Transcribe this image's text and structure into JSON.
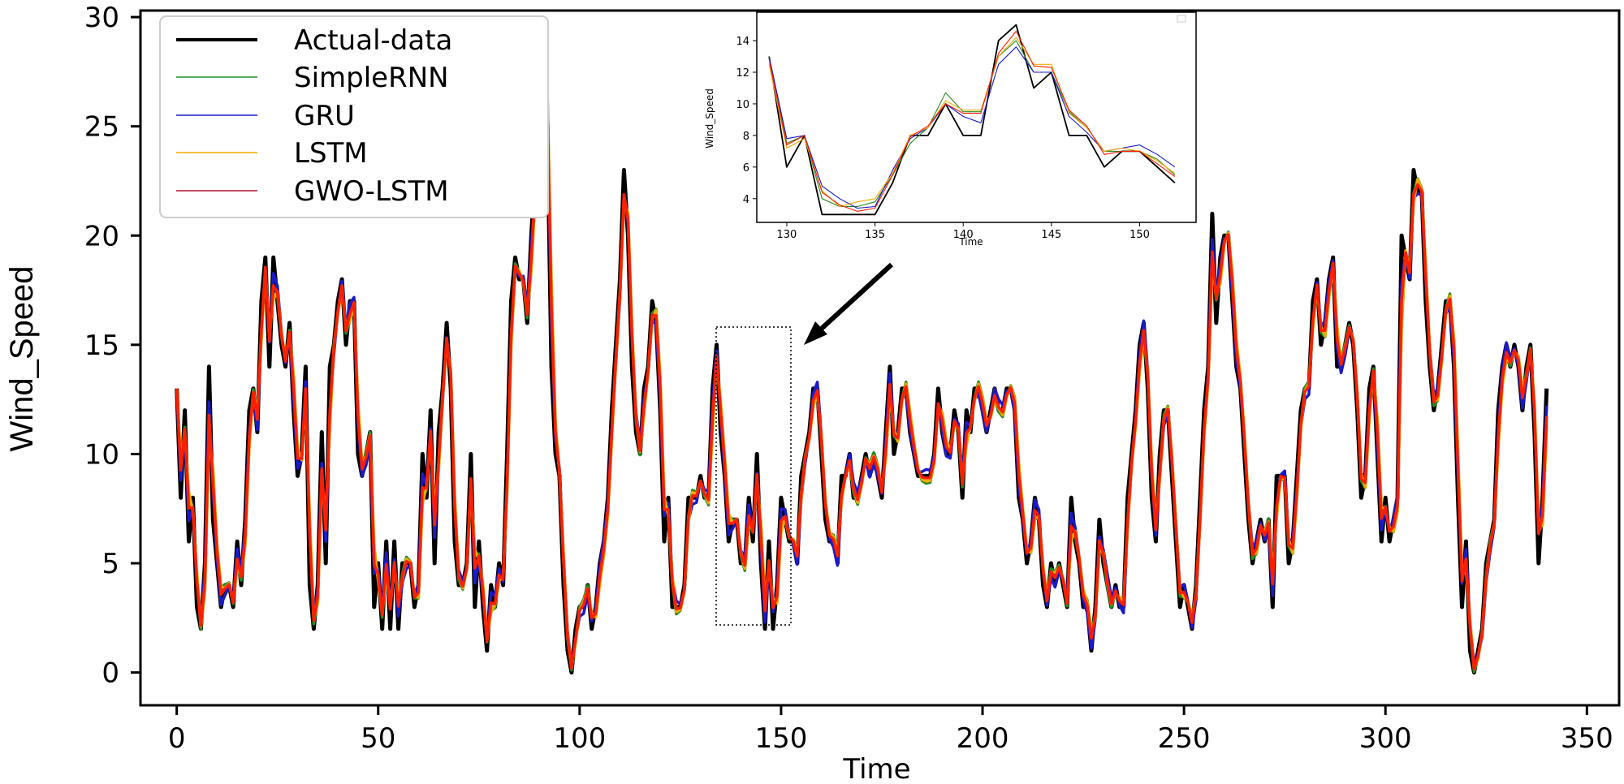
{
  "colors": {
    "actual": "#000000",
    "simplernn": "#228b22",
    "gru": "#1a1ac8",
    "lstm": "#f2a900",
    "gwo": "#b0102a",
    "red_overlay": "#ff1e00"
  },
  "chart_data": [
    {
      "type": "line",
      "title": "",
      "xlabel": "Time",
      "ylabel": "Wind_Speed",
      "xlim": [
        -9,
        358
      ],
      "ylim": [
        -1.5,
        30.3
      ],
      "xticks": [
        0,
        50,
        100,
        150,
        200,
        250,
        300,
        350
      ],
      "yticks": [
        0,
        5,
        10,
        15,
        20,
        25,
        30
      ],
      "legend": {
        "position": "top-left",
        "entries": [
          "Actual-data",
          "SimpleRNN",
          "GRU",
          "LSTM",
          "GWO-LSTM"
        ]
      },
      "annotation": "dotted box around x=130-150 with arrow pointing to inset",
      "series": [
        {
          "name": "Actual-data",
          "x_start": 0,
          "values": [
            13,
            8,
            12,
            6,
            8,
            3,
            2,
            5,
            14,
            7,
            5,
            3,
            4,
            4,
            3,
            6,
            4,
            7,
            12,
            13,
            11,
            17,
            19,
            14,
            19,
            17,
            15,
            14,
            16,
            12,
            9,
            10,
            14,
            4,
            2,
            4,
            11,
            5,
            14,
            15,
            17,
            18,
            15,
            17,
            17,
            10,
            9,
            10,
            11,
            3,
            5,
            2,
            6,
            2,
            6,
            2,
            5,
            5,
            5,
            3,
            4,
            10,
            8,
            12,
            5,
            11,
            13,
            16,
            13,
            6,
            4,
            4,
            5,
            10,
            3,
            6,
            3,
            1,
            4,
            3,
            5,
            4,
            10,
            17,
            19,
            18,
            18,
            16,
            20,
            23,
            22,
            29,
            25,
            14,
            10,
            9,
            4,
            1,
            0,
            2,
            3,
            3,
            4,
            2,
            3,
            5,
            6,
            8,
            12,
            15,
            18,
            23,
            20,
            14,
            11,
            10,
            13,
            14,
            17,
            16,
            12,
            6,
            8,
            3,
            3,
            3,
            4,
            8,
            8,
            8,
            9,
            8,
            8,
            13,
            15,
            11,
            9,
            6,
            7,
            7,
            5,
            5,
            8,
            6,
            10,
            5,
            2,
            6,
            2,
            4,
            8,
            7,
            6,
            6,
            5,
            9,
            10,
            11,
            13,
            13,
            10,
            7,
            6,
            6,
            5,
            9,
            9,
            10,
            8,
            8,
            9,
            10,
            9,
            10,
            9,
            8,
            11,
            14,
            10,
            11,
            13,
            13,
            11,
            10,
            9,
            9,
            9,
            9,
            10,
            13,
            11,
            10,
            10,
            12,
            11,
            8,
            12,
            11,
            13,
            13,
            12,
            11,
            12,
            13,
            12,
            12,
            13,
            13,
            12,
            8,
            7,
            5,
            6,
            8,
            7,
            4,
            3,
            5,
            4,
            5,
            4,
            3,
            8,
            6,
            5,
            3,
            3,
            1,
            3,
            7,
            5,
            4,
            3,
            4,
            3,
            3,
            8,
            10,
            12,
            15,
            16,
            13,
            8,
            6,
            10,
            12,
            12,
            9,
            6,
            3,
            4,
            3,
            2,
            4,
            8,
            12,
            14,
            21,
            16,
            19,
            20,
            20,
            17,
            14,
            13,
            10,
            7,
            5,
            6,
            7,
            6,
            7,
            3,
            9,
            9,
            9,
            5,
            6,
            9,
            12,
            13,
            13,
            17,
            18,
            15,
            16,
            18,
            19,
            14,
            14,
            15,
            16,
            15,
            12,
            8,
            9,
            13,
            14,
            10,
            6,
            8,
            6,
            7,
            8,
            20,
            19,
            18,
            23,
            22,
            22,
            17,
            14,
            12,
            13,
            15,
            17,
            17,
            14,
            8,
            3,
            6,
            1,
            0,
            1,
            2,
            5,
            6,
            7,
            12,
            14,
            15,
            14,
            15,
            14,
            12,
            14,
            15,
            11,
            5,
            8,
            13
          ]
        }
      ]
    },
    {
      "type": "line",
      "title": "",
      "xlabel": "Time",
      "ylabel": "Wind_Speed",
      "xlim": [
        128.3,
        153.2
      ],
      "ylim": [
        2.5,
        15.8
      ],
      "xticks": [
        130,
        135,
        140,
        145,
        150
      ],
      "yticks": [
        4,
        6,
        8,
        10,
        12,
        14
      ],
      "series": [
        {
          "name": "Actual-data",
          "x": [
            129,
            130,
            131,
            132,
            133,
            134,
            135,
            136,
            137,
            138,
            139,
            140,
            141,
            142,
            143,
            144,
            145,
            146,
            147,
            148,
            149,
            150,
            151,
            152
          ],
          "values": [
            13,
            6,
            8,
            3,
            3,
            3,
            3,
            5,
            8,
            8,
            10,
            8,
            8,
            14,
            15,
            11,
            12,
            8,
            8,
            6,
            7,
            7,
            6,
            5
          ]
        },
        {
          "name": "SimpleRNN",
          "x": [
            129,
            130,
            131,
            132,
            133,
            134,
            135,
            136,
            137,
            138,
            139,
            140,
            141,
            142,
            143,
            144,
            145,
            146,
            147,
            148,
            149,
            150,
            151,
            152
          ],
          "values": [
            13,
            7.5,
            8,
            4,
            3.5,
            3.5,
            3.8,
            5.5,
            7.5,
            8.5,
            10.7,
            9.5,
            9.5,
            13,
            14,
            12,
            12,
            9.5,
            8.5,
            7,
            7,
            7,
            6.5,
            5.5
          ]
        },
        {
          "name": "GRU",
          "x": [
            129,
            130,
            131,
            132,
            133,
            134,
            135,
            136,
            137,
            138,
            139,
            140,
            141,
            142,
            143,
            144,
            145,
            146,
            147,
            148,
            149,
            150,
            151,
            152
          ],
          "values": [
            13,
            7.8,
            8,
            4.8,
            4,
            3.4,
            3.5,
            5.8,
            7.8,
            8.5,
            10,
            9.2,
            8.8,
            12.5,
            13.6,
            12,
            12,
            9.2,
            8.2,
            7,
            7.2,
            7.4,
            6.8,
            6
          ]
        },
        {
          "name": "LSTM",
          "x": [
            129,
            130,
            131,
            132,
            133,
            134,
            135,
            136,
            137,
            138,
            139,
            140,
            141,
            142,
            143,
            144,
            145,
            146,
            147,
            148,
            149,
            150,
            151,
            152
          ],
          "values": [
            12.5,
            7.2,
            7.8,
            4.5,
            3.5,
            3.8,
            4,
            5.6,
            8,
            8.5,
            10.2,
            9.6,
            9.6,
            13,
            14.2,
            12.5,
            12.5,
            9.4,
            8.5,
            7,
            7.2,
            7,
            6.4,
            5.6
          ]
        },
        {
          "name": "GWO-LSTM",
          "x": [
            129,
            130,
            131,
            132,
            133,
            134,
            135,
            136,
            137,
            138,
            139,
            140,
            141,
            142,
            143,
            144,
            145,
            146,
            147,
            148,
            149,
            150,
            151,
            152
          ],
          "values": [
            12.8,
            7.4,
            8,
            4.4,
            3.6,
            3.2,
            3.4,
            5.5,
            7.9,
            8.6,
            10,
            9.4,
            9.4,
            13.2,
            14.6,
            12.4,
            12.3,
            9.6,
            8.6,
            6.8,
            7,
            7,
            6.2,
            5.4
          ]
        }
      ]
    }
  ]
}
